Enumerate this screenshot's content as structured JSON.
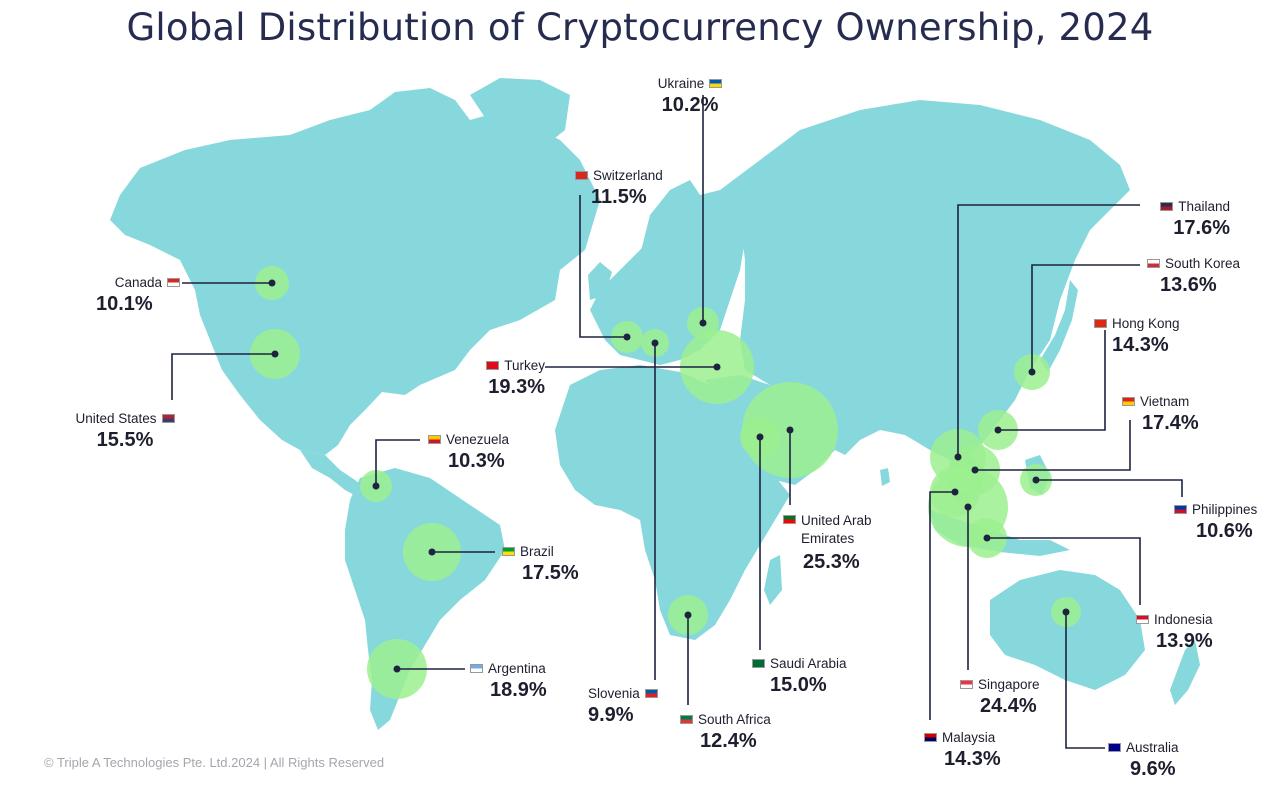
{
  "title": "Global Distribution of Cryptocurrency Ownership, 2024",
  "copyright": "© Triple A Technologies Pte. Ltd.2024 | All Rights Reserved",
  "colors": {
    "land": "#86d8dd",
    "bubble": "#9cf08f",
    "leader": "#1e2340",
    "text": "#1d1f2e",
    "title": "#262c4f"
  },
  "countries": [
    {
      "key": "ukraine",
      "name": "Ukraine",
      "value": "10.2%",
      "flag": [
        "#0057b7",
        "#ffd700"
      ]
    },
    {
      "key": "switzerland",
      "name": "Switzerland",
      "value": "11.5%",
      "flag": [
        "#d52b1e",
        "#d52b1e"
      ]
    },
    {
      "key": "canada",
      "name": "Canada",
      "value": "10.1%",
      "flag": [
        "#d52b1e",
        "#ffffff"
      ]
    },
    {
      "key": "united-states",
      "name": "United States",
      "value": "15.5%",
      "flag": [
        "#b22234",
        "#3c3b6e"
      ]
    },
    {
      "key": "turkey",
      "name": "Turkey",
      "value": "19.3%",
      "flag": [
        "#e30a17",
        "#e30a17"
      ]
    },
    {
      "key": "venezuela",
      "name": "Venezuela",
      "value": "10.3%",
      "flag": [
        "#ffcc00",
        "#cf142b"
      ]
    },
    {
      "key": "brazil",
      "name": "Brazil",
      "value": "17.5%",
      "flag": [
        "#009c3b",
        "#ffdf00"
      ]
    },
    {
      "key": "argentina",
      "name": "Argentina",
      "value": "18.9%",
      "flag": [
        "#74acdf",
        "#ffffff"
      ]
    },
    {
      "key": "slovenia",
      "name": "Slovenia",
      "value": "9.9%",
      "flag": [
        "#005da4",
        "#ed1c24"
      ]
    },
    {
      "key": "south-africa",
      "name": "South Africa",
      "value": "12.4%",
      "flag": [
        "#007a4d",
        "#de3831"
      ]
    },
    {
      "key": "saudi-arabia",
      "name": "Saudi Arabia",
      "value": "15.0%",
      "flag": [
        "#006c35",
        "#006c35"
      ]
    },
    {
      "key": "uae",
      "name": "United Arab\nEmirates",
      "value": "25.3%",
      "flag": [
        "#00732f",
        "#ff0000"
      ]
    },
    {
      "key": "thailand",
      "name": "Thailand",
      "value": "17.6%",
      "flag": [
        "#2d2a4a",
        "#a51931"
      ]
    },
    {
      "key": "south-korea",
      "name": "South Korea",
      "value": "13.6%",
      "flag": [
        "#ffffff",
        "#cd2e3a"
      ]
    },
    {
      "key": "hong-kong",
      "name": "Hong Kong",
      "value": "14.3%",
      "flag": [
        "#de2910",
        "#de2910"
      ]
    },
    {
      "key": "vietnam",
      "name": "Vietnam",
      "value": "17.4%",
      "flag": [
        "#da251d",
        "#ffcd00"
      ]
    },
    {
      "key": "philippines",
      "name": "Philippines",
      "value": "10.6%",
      "flag": [
        "#0038a8",
        "#ce1126"
      ]
    },
    {
      "key": "indonesia",
      "name": "Indonesia",
      "value": "13.9%",
      "flag": [
        "#ce1126",
        "#ffffff"
      ]
    },
    {
      "key": "singapore",
      "name": "Singapore",
      "value": "24.4%",
      "flag": [
        "#ef3340",
        "#ffffff"
      ]
    },
    {
      "key": "malaysia",
      "name": "Malaysia",
      "value": "14.3%",
      "flag": [
        "#cc0001",
        "#010066"
      ]
    },
    {
      "key": "australia",
      "name": "Australia",
      "value": "9.6%",
      "flag": [
        "#00008b",
        "#00008b"
      ]
    }
  ]
}
